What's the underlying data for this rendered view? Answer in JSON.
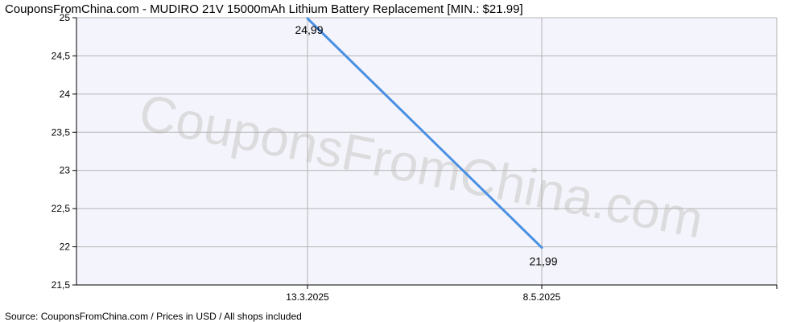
{
  "title": "CouponsFromChina.com - MUDIRO 21V 15000mAh Lithium Battery Replacement [MIN.: $21.99]",
  "watermark": "CouponsFromChina.com",
  "source": "Source:  CouponsFromChina.com / Prices in USD / All shops included",
  "colors": {
    "line": "#4a90e2",
    "plot_background": "#f4f4fc",
    "grid": "#b4b4b4",
    "axis": "#000000"
  },
  "chart_data": {
    "type": "line",
    "x": [
      "13.3.2025",
      "8.5.2025"
    ],
    "series": [
      {
        "values": [
          24.99,
          21.99
        ],
        "labels": [
          "24,99",
          "21,99"
        ]
      }
    ],
    "ylim": [
      21.5,
      25
    ],
    "yticks": [
      21.5,
      22,
      22.5,
      23,
      23.5,
      24,
      24.5,
      25
    ],
    "ytick_labels": [
      "21,5",
      "22",
      "22,5",
      "23",
      "23,5",
      "24",
      "24,5",
      "25"
    ],
    "grid": true,
    "legend": "none"
  }
}
